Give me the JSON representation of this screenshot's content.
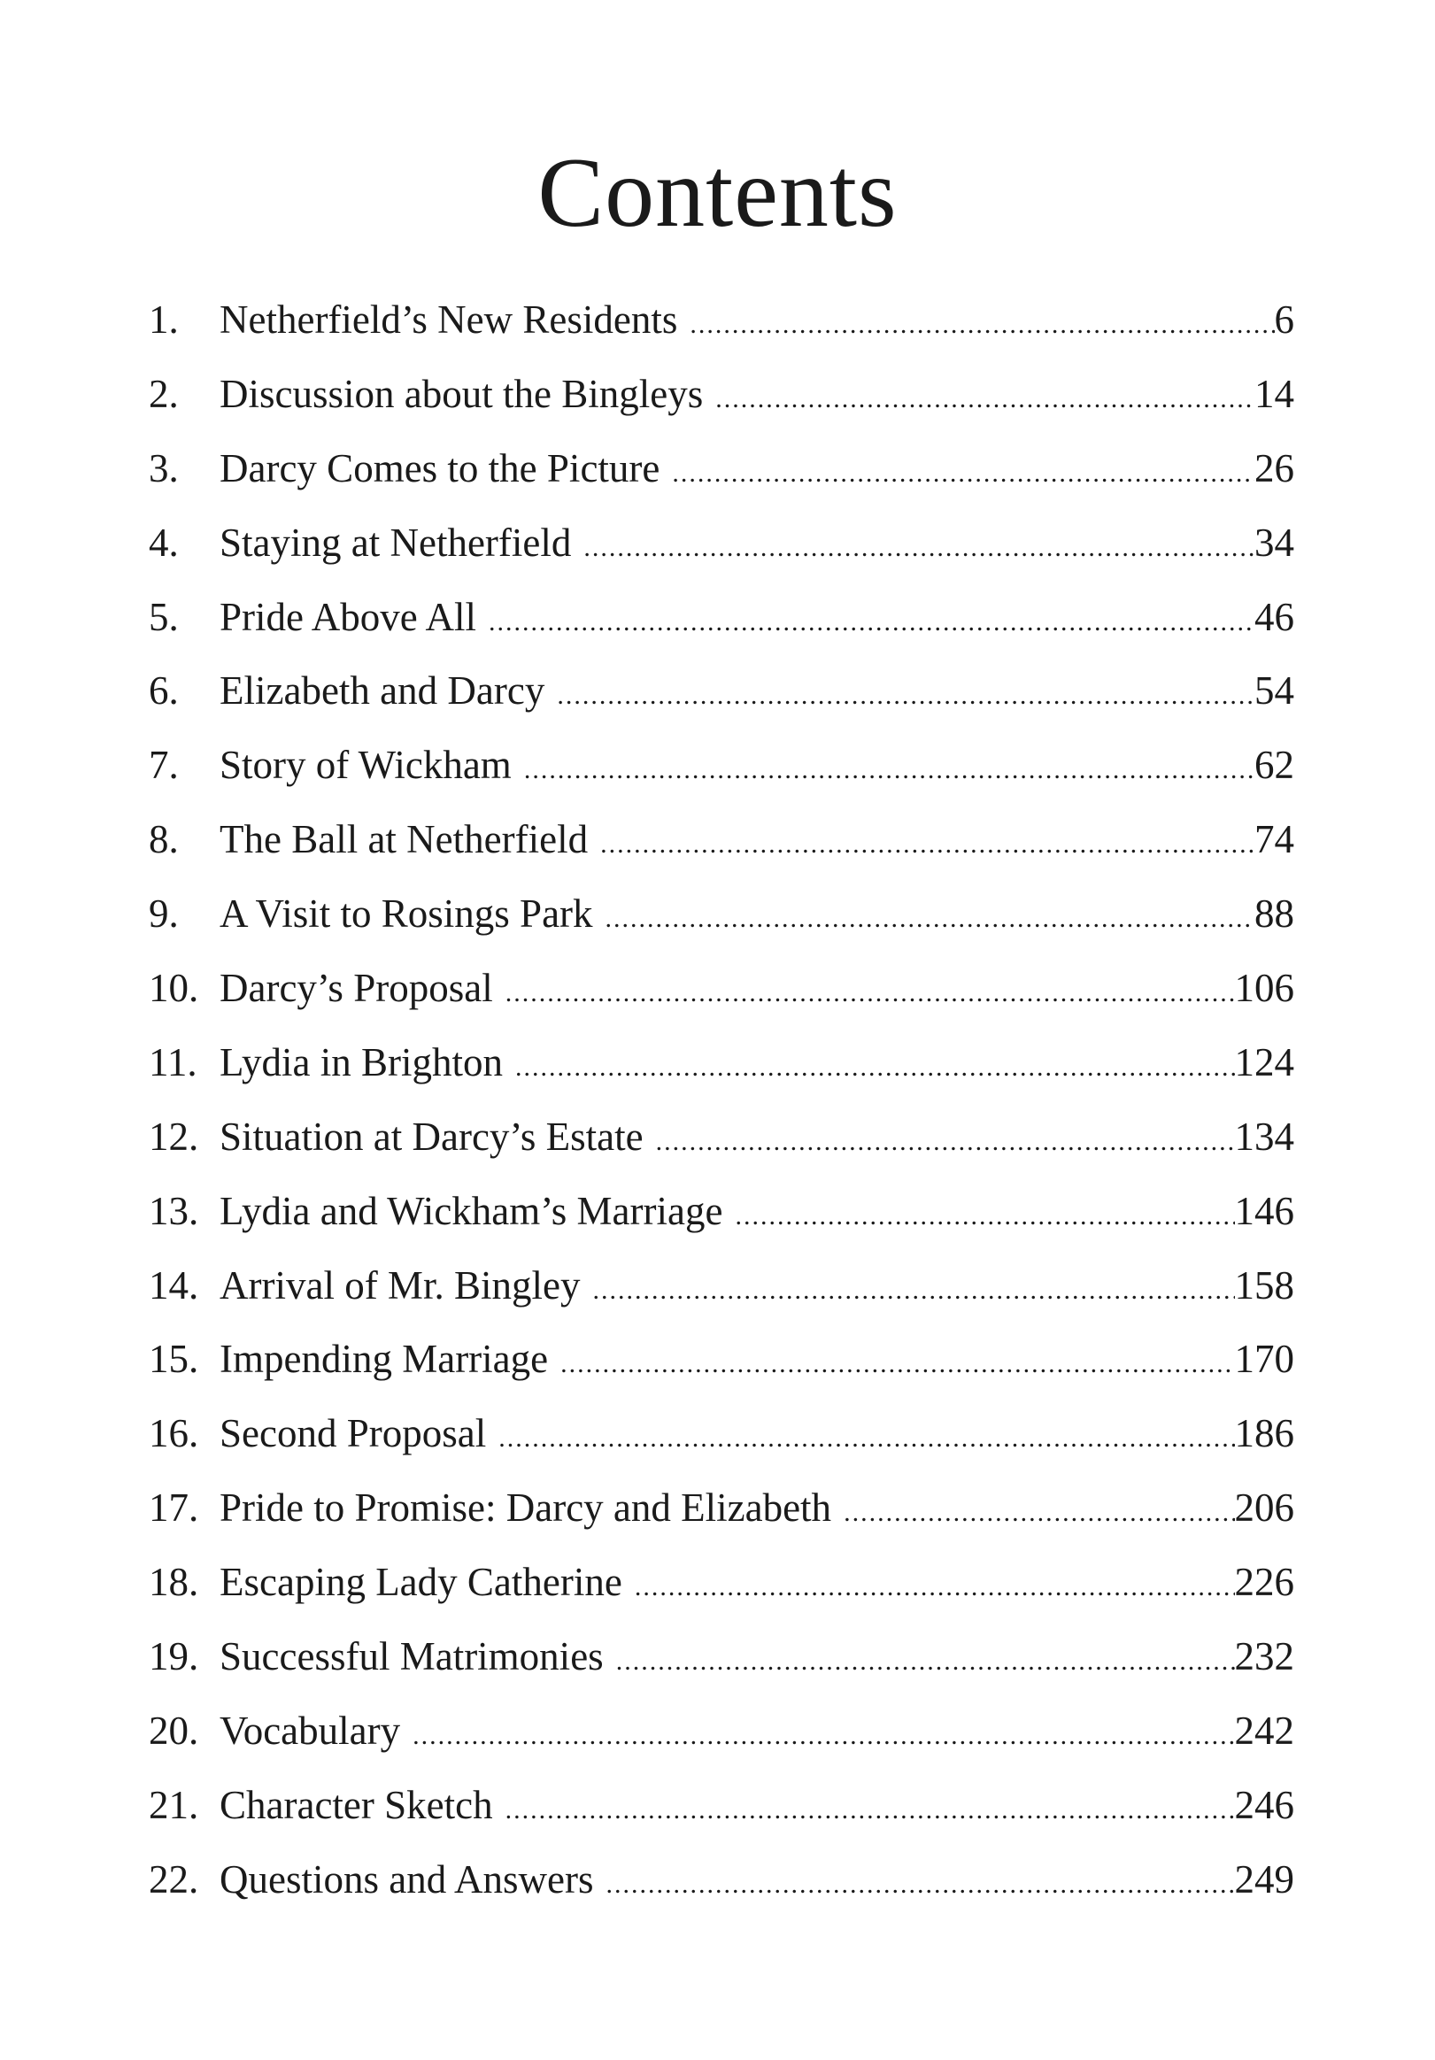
{
  "title": "Contents",
  "entries": [
    {
      "num": "1.",
      "label": "Netherfield’s New Residents",
      "page": "6"
    },
    {
      "num": "2.",
      "label": "Discussion about the Bingleys",
      "page": "14"
    },
    {
      "num": "3.",
      "label": "Darcy Comes to the Picture",
      "page": "26"
    },
    {
      "num": "4.",
      "label": "Staying at Netherfield",
      "page": "34"
    },
    {
      "num": "5.",
      "label": "Pride Above All",
      "page": "46"
    },
    {
      "num": "6.",
      "label": "Elizabeth and Darcy",
      "page": "54"
    },
    {
      "num": "7.",
      "label": "Story of Wickham",
      "page": "62"
    },
    {
      "num": "8.",
      "label": "The Ball at Netherfield",
      "page": "74"
    },
    {
      "num": "9.",
      "label": "A Visit to Rosings Park",
      "page": "88"
    },
    {
      "num": "10.",
      "label": "Darcy’s Proposal",
      "page": "106"
    },
    {
      "num": "11.",
      "label": "Lydia in Brighton",
      "page": "124"
    },
    {
      "num": "12.",
      "label": "Situation at Darcy’s Estate",
      "page": "134"
    },
    {
      "num": "13.",
      "label": "Lydia and Wickham’s Marriage",
      "page": "146"
    },
    {
      "num": "14.",
      "label": "Arrival of Mr. Bingley",
      "page": "158"
    },
    {
      "num": "15.",
      "label": "Impending Marriage",
      "page": "170"
    },
    {
      "num": "16.",
      "label": "Second Proposal",
      "page": "186"
    },
    {
      "num": "17.",
      "label": "Pride to Promise: Darcy and Elizabeth",
      "page": "206"
    },
    {
      "num": "18.",
      "label": "Escaping Lady Catherine",
      "page": "226"
    },
    {
      "num": "19.",
      "label": "Successful Matrimonies",
      "page": "232"
    },
    {
      "num": "20.",
      "label": "Vocabulary",
      "page": "242"
    },
    {
      "num": "21.",
      "label": "Character Sketch",
      "page": "246"
    },
    {
      "num": "22.",
      "label": "Questions and Answers",
      "page": "249"
    }
  ]
}
